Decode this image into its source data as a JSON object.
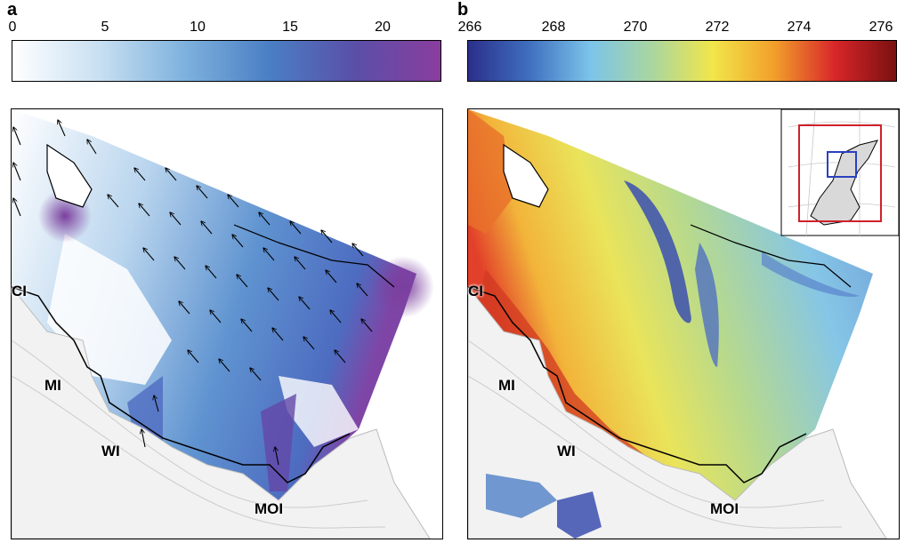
{
  "panels": [
    {
      "letter": "a",
      "colorbar": {
        "ticks": [
          "0",
          "5",
          "10",
          "15",
          "20"
        ],
        "tick_values": [
          0,
          5,
          10,
          15,
          20
        ],
        "min": 0,
        "max": 23,
        "colors": [
          "#ffffff",
          "#c9e0f2",
          "#7fb2de",
          "#4a7fc4",
          "#5a4fa8",
          "#8a3d9e"
        ]
      },
      "places": [
        "CI",
        "MI",
        "WI",
        "MOI"
      ]
    },
    {
      "letter": "b",
      "colorbar": {
        "ticks": [
          "266",
          "268",
          "270",
          "272",
          "274",
          "276"
        ],
        "tick_values": [
          266,
          268,
          270,
          272,
          274,
          276
        ],
        "min": 266,
        "max": 276.5,
        "colors": [
          "#2b2f8a",
          "#3f6fc0",
          "#7cc4ea",
          "#a9d6a0",
          "#f2e64a",
          "#f2a02a",
          "#d8262a",
          "#7a1010"
        ]
      },
      "places": [
        "CI",
        "MI",
        "WI",
        "MOI"
      ]
    }
  ]
}
